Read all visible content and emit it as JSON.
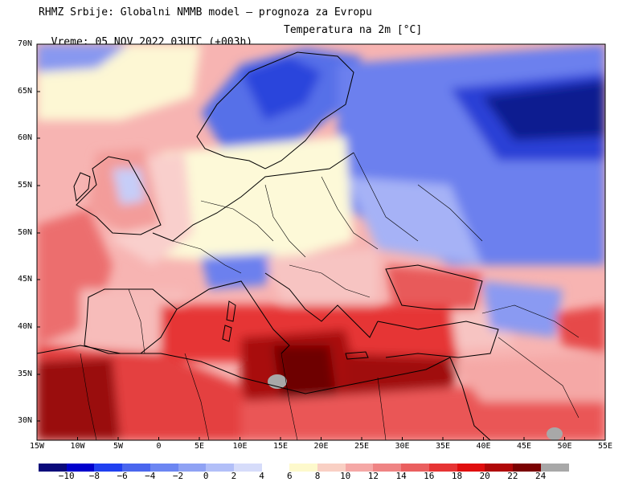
{
  "header": {
    "line1": "RHMZ Srbije: Globalni NMMB model — prognoza za Evropu",
    "line2_left": "Vreme: 05 NOV 2022 03UTC (+003h)",
    "line2_right": "Temperatura na 2m [°C]"
  },
  "map": {
    "lat_labels": [
      "70N",
      "65N",
      "60N",
      "55N",
      "50N",
      "45N",
      "40N",
      "35N",
      "30N"
    ],
    "lon_labels": [
      "15W",
      "10W",
      "5W",
      "0",
      "5E",
      "10E",
      "15E",
      "20E",
      "25E",
      "30E",
      "35E",
      "40E",
      "45E",
      "50E",
      "55E"
    ],
    "colors": {
      "very_cold": "#1030d8",
      "cold": "#3c5ae6",
      "cool": "#7b8cf2",
      "chilly": "#b8c0f8",
      "neutral": "#fdfbd8",
      "mild": "#f9c4c2",
      "warm": "#f08888",
      "warmer": "#e85858",
      "hot": "#e01818",
      "very_hot": "#a81010",
      "extreme": "#7a0606",
      "land_line": "#000000"
    }
  },
  "colorbar": {
    "labels": [
      "−10",
      "−8",
      "−6",
      "−4",
      "−2",
      "0",
      "2",
      "4",
      "6",
      "8",
      "10",
      "12",
      "14",
      "16",
      "18",
      "20",
      "22",
      "24"
    ],
    "colors": [
      "#0a0a7a",
      "#0000cc",
      "#2040f0",
      "#4a66ee",
      "#6c86f2",
      "#8fa2f4",
      "#b2bff8",
      "#d6dcfa",
      "#ffffff",
      "#fdf9cc",
      "#f9d0c4",
      "#f5a8a6",
      "#ef8484",
      "#ea5f5f",
      "#e63434",
      "#e00e0e",
      "#b00808",
      "#7a0202",
      "#a8a8a8"
    ]
  }
}
